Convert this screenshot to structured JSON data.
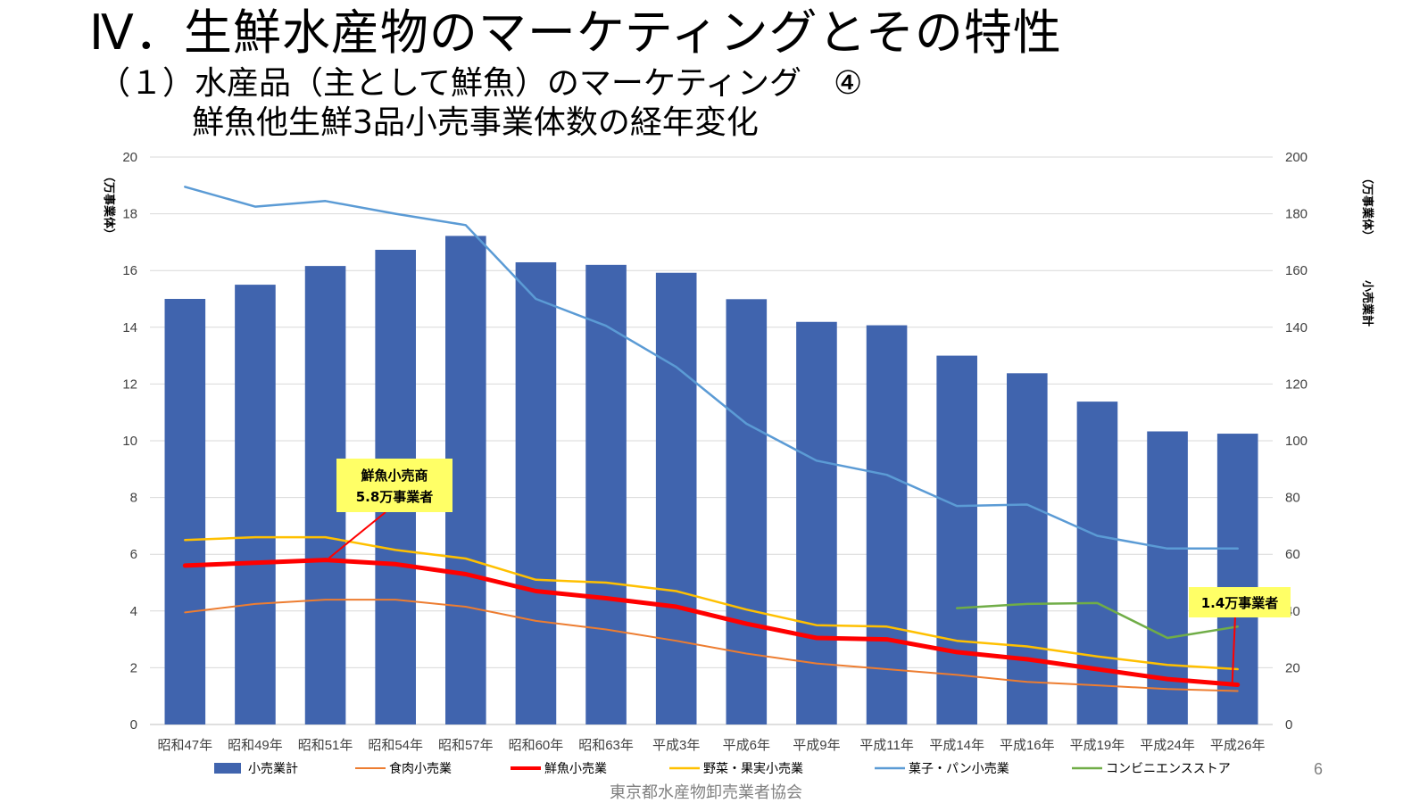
{
  "slide": {
    "title": "Ⅳ．生鮮水産物のマーケティングとその特性",
    "subtitle": "（１）水産品（主として鮮魚）のマーケティング　④",
    "subtitle2": "鮮魚他生鮮3品小売事業体数の経年変化",
    "page_number": "6",
    "footer": "東京都水産物卸売業者協会"
  },
  "chart_data": {
    "type": "bar",
    "categories": [
      "昭和47年",
      "昭和49年",
      "昭和51年",
      "昭和54年",
      "昭和57年",
      "昭和60年",
      "昭和63年",
      "平成3年",
      "平成6年",
      "平成9年",
      "平成11年",
      "平成14年",
      "平成16年",
      "平成19年",
      "平成24年",
      "平成26年"
    ],
    "left_axis": {
      "label": "（万事業体）",
      "range": [
        0,
        20
      ],
      "ticks": [
        "0",
        "2",
        "4",
        "6",
        "8",
        "10",
        "12",
        "14",
        "16",
        "18",
        "20"
      ]
    },
    "right_axis": {
      "label_units": "（万事業体）",
      "label_main": "小売業計",
      "range": [
        0,
        200
      ],
      "ticks": [
        "0",
        "20",
        "40",
        "60",
        "80",
        "100",
        "120",
        "140",
        "160",
        "180",
        "200"
      ]
    },
    "grid": true,
    "legend_position": "bottom",
    "series": [
      {
        "name": "小売業計",
        "type": "bar",
        "axis": "right",
        "color": "#4064AE",
        "values": [
          150,
          155,
          161.6,
          167.3,
          172.2,
          162.9,
          162,
          159.2,
          149.9,
          141.9,
          140.7,
          130,
          123.8,
          113.8,
          103.3,
          102.5
        ]
      },
      {
        "name": "食肉小売業",
        "type": "line",
        "axis": "left",
        "color": "#ED7D31",
        "width": 2,
        "values": [
          3.95,
          4.25,
          4.4,
          4.4,
          4.15,
          3.65,
          3.35,
          2.95,
          2.5,
          2.15,
          1.95,
          1.75,
          1.5,
          1.38,
          1.25,
          1.18
        ]
      },
      {
        "name": "鮮魚小売業",
        "type": "line",
        "axis": "left",
        "color": "#FF0000",
        "width": 5,
        "values": [
          5.6,
          5.7,
          5.8,
          5.65,
          5.3,
          4.7,
          4.45,
          4.15,
          3.55,
          3.05,
          3.0,
          2.55,
          2.3,
          1.95,
          1.6,
          1.4
        ]
      },
      {
        "name": "野菜・果実小売業",
        "type": "line",
        "axis": "left",
        "color": "#FFC000",
        "width": 2.5,
        "values": [
          6.5,
          6.6,
          6.6,
          6.15,
          5.85,
          5.1,
          5.0,
          4.7,
          4.05,
          3.5,
          3.45,
          2.95,
          2.75,
          2.4,
          2.1,
          1.95
        ]
      },
      {
        "name": "菓子・パン小売業",
        "type": "line",
        "axis": "left",
        "color": "#5B9BD5",
        "width": 2.5,
        "values": [
          18.95,
          18.25,
          18.45,
          18.0,
          17.6,
          15.0,
          14.05,
          12.6,
          10.6,
          9.3,
          8.8,
          7.7,
          7.75,
          6.65,
          6.2,
          6.2
        ]
      },
      {
        "name": "コンビニエンスストア",
        "type": "line",
        "axis": "left",
        "color": "#70AD47",
        "width": 2.5,
        "values": [
          null,
          null,
          null,
          null,
          null,
          null,
          null,
          null,
          null,
          null,
          null,
          4.1,
          4.25,
          4.28,
          3.05,
          3.45
        ]
      }
    ],
    "annotations": [
      {
        "line1": "鮮魚小売商",
        "line2": "5.8万事業者",
        "series": "鮮魚小売業",
        "point_index": 2,
        "background": "#FFFF66"
      },
      {
        "line1": "1.4万事業者",
        "series": "鮮魚小売業",
        "point_index": 15,
        "background": "#FFFF66"
      }
    ]
  }
}
